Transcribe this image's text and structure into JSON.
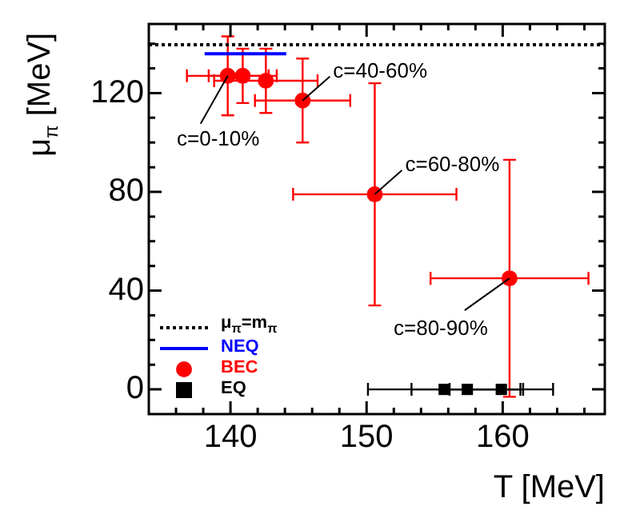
{
  "chart_data": {
    "type": "scatter",
    "xlabel": "T [MeV]",
    "ylabel": "μ$_{π}$ [MeV]",
    "xlim": [
      134,
      167.5
    ],
    "ylim": [
      -10,
      148
    ],
    "xticks": [
      {
        "value": 136,
        "label": null
      },
      {
        "value": 138,
        "label": null
      },
      140,
      {
        "value": 142,
        "label": null
      },
      {
        "value": 144,
        "label": null
      },
      {
        "value": 146,
        "label": null
      },
      {
        "value": 148,
        "label": null
      },
      150,
      {
        "value": 152,
        "label": null
      },
      {
        "value": 154,
        "label": null
      },
      {
        "value": 156,
        "label": null
      },
      {
        "value": 158,
        "label": null
      },
      160,
      {
        "value": 162,
        "label": null
      },
      {
        "value": 164,
        "label": null
      },
      {
        "value": 166,
        "label": null
      }
    ],
    "yticks": [
      0,
      {
        "value": 10,
        "label": null
      },
      {
        "value": 20,
        "label": null
      },
      {
        "value": 30,
        "label": null
      },
      40,
      {
        "value": 50,
        "label": null
      },
      {
        "value": 60,
        "label": null
      },
      {
        "value": 70,
        "label": null
      },
      80,
      {
        "value": 90,
        "label": null
      },
      {
        "value": 100,
        "label": null
      },
      {
        "value": 110,
        "label": null
      },
      120,
      {
        "value": 130,
        "label": null
      },
      {
        "value": 140,
        "label": null
      }
    ],
    "grid": false,
    "legend": "bottom left",
    "series": [
      {
        "name": "μ$_{π}$=m$_{π}$",
        "type": "line",
        "color": "#000000",
        "line_style": "dotted",
        "marker": "none",
        "x": [
          134,
          167.5
        ],
        "values": [
          139.6,
          139.6
        ]
      },
      {
        "name": "NEQ",
        "type": "line",
        "color": "#0000ff",
        "line_style": "solid",
        "marker": "none",
        "x": [
          138.1,
          144.1
        ],
        "values": [
          135.9,
          135.9
        ]
      },
      {
        "name": "BEC",
        "type": "scatter",
        "color": "#ff0000",
        "marker": "circle",
        "x": [
          139.8,
          140.9,
          142.6,
          145.3,
          150.6,
          160.5
        ],
        "values": [
          127,
          127,
          125,
          117,
          79,
          45
        ],
        "errors": [
          16,
          11,
          13,
          17,
          45,
          48
        ],
        "xerrors": [
          3,
          2.5,
          3.8,
          3.5,
          6,
          5.8
        ]
      },
      {
        "name": "EQ",
        "type": "scatter",
        "color": "#000000",
        "marker": "square",
        "x": [
          155.7,
          157.4,
          159.9
        ],
        "values": [
          0,
          0,
          0
        ],
        "xerrors": [
          5.6,
          4.1,
          3.8
        ]
      }
    ],
    "annotations": [
      {
        "text": "c=0-10%",
        "x": 139.8,
        "y": 127
      },
      {
        "text": "c=40-60%",
        "x": 145.3,
        "y": 117
      },
      {
        "text": "c=60-80%",
        "x": 150.6,
        "y": 79
      },
      {
        "text": "c=80-90%",
        "x": 160.5,
        "y": 45
      }
    ]
  }
}
